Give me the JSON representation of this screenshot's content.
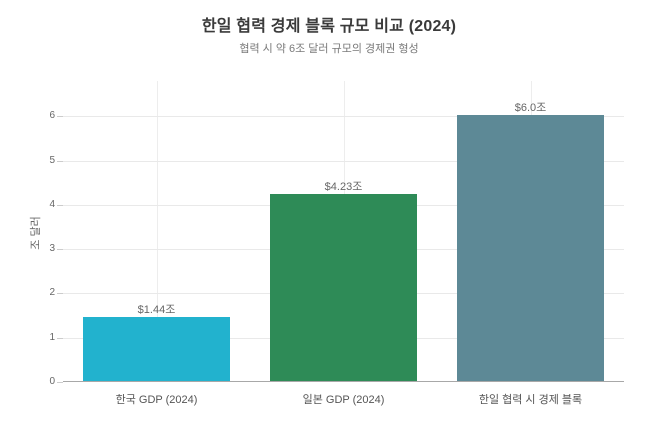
{
  "chart_data": {
    "type": "bar",
    "title": "한일 협력 경제 블록 규모 비교 (2024)",
    "subtitle": "협력 시 약 6조 달러 규모의 경제권 형성",
    "xlabel": "",
    "ylabel": "조 달러",
    "categories": [
      "한국 GDP (2024)",
      "일본 GDP (2024)",
      "한일 협력 시 경제 블록"
    ],
    "values": [
      1.44,
      4.23,
      6.0
    ],
    "value_labels": [
      "$1.44조",
      "$4.23조",
      "$6.0조"
    ],
    "bar_colors": [
      "#22b2ce",
      "#2e8b57",
      "#5d8996"
    ],
    "ylim": [
      0,
      6.8
    ],
    "yticks": [
      0,
      1,
      2,
      3,
      4,
      5,
      6
    ],
    "grid": true,
    "legend_position": "none",
    "style": {
      "background_color": "#ffffff",
      "title_color": "#3a3a3a",
      "subtitle_color": "#7a7a7a",
      "grid_color": "#e9e9e9",
      "axis_line_color": "#a8a8a8",
      "tick_mark_color": "#cccccc",
      "ytick_label_color": "#666666",
      "xtick_label_color": "#555555",
      "value_label_color": "#666666",
      "bar_width_fraction": 0.786
    }
  }
}
